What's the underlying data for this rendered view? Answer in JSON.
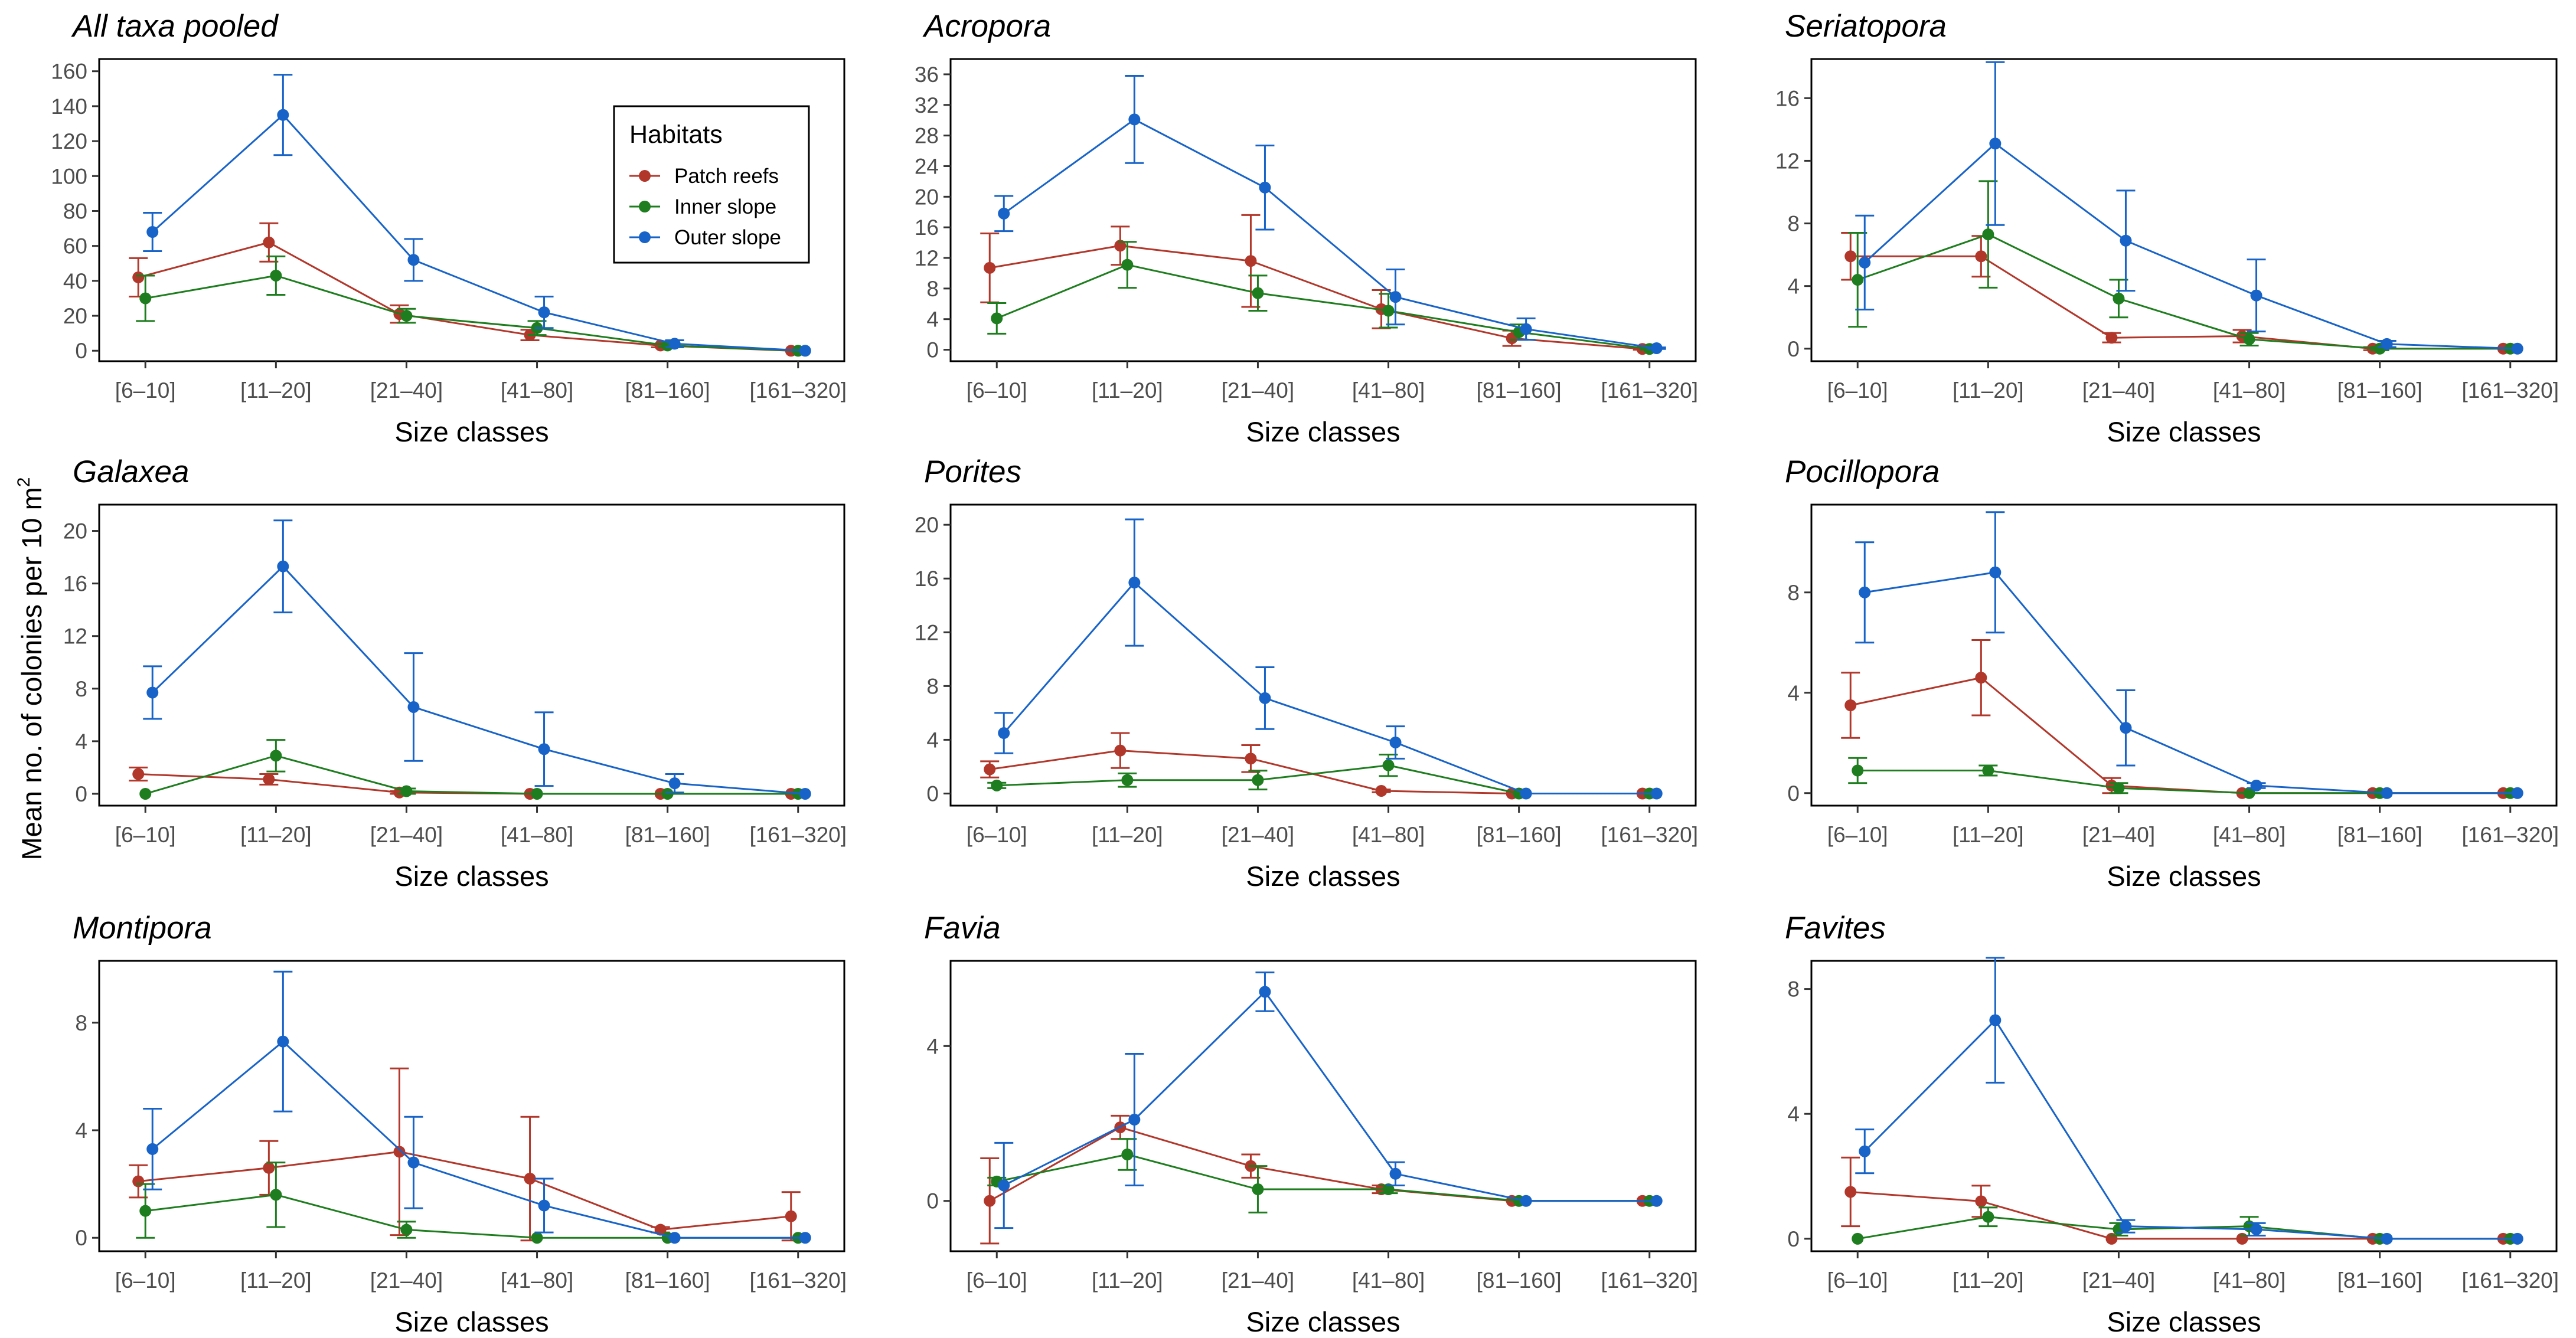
{
  "ylabel": "Mean no. of colonies per 10 m",
  "ylabel_sup": "2",
  "xlabel": "Size classes",
  "legend": {
    "title": "Habitats",
    "labels": [
      "Patch reefs",
      "Inner slope",
      "Outer slope"
    ]
  },
  "colors": {
    "patch_reefs": "#b2372b",
    "inner_slope": "#1e7d1e",
    "outer_slope": "#1763c8"
  },
  "chart_data": [
    {
      "type": "line",
      "title": "All taxa pooled",
      "categories": [
        "[6–10]",
        "[11–20]",
        "[21–40]",
        "[41–80]",
        "[81–160]",
        "[161–320]"
      ],
      "xlabel": "Size classes",
      "ylim": [
        -6,
        167
      ],
      "yticks": [
        0,
        20,
        40,
        60,
        80,
        100,
        120,
        140,
        160
      ],
      "series": [
        {
          "name": "Patch reefs",
          "values": [
            42,
            62,
            21,
            9,
            3,
            0
          ],
          "err": [
            11,
            11,
            5,
            3,
            1,
            0
          ]
        },
        {
          "name": "Inner slope",
          "values": [
            30,
            43,
            20,
            13,
            3,
            0
          ],
          "err": [
            13,
            11,
            4,
            4,
            1,
            0
          ]
        },
        {
          "name": "Outer slope",
          "values": [
            68,
            135,
            52,
            22,
            4,
            0
          ],
          "err": [
            11,
            23,
            12,
            9,
            2,
            0
          ]
        }
      ]
    },
    {
      "type": "line",
      "title": "Acropora",
      "categories": [
        "[6–10]",
        "[11–20]",
        "[21–40]",
        "[41–80]",
        "[81–160]",
        "[161–320]"
      ],
      "xlabel": "Size classes",
      "ylim": [
        -1.5,
        38
      ],
      "yticks": [
        0,
        4,
        8,
        12,
        16,
        20,
        24,
        28,
        32,
        36
      ],
      "series": [
        {
          "name": "Patch reefs",
          "values": [
            10.7,
            13.6,
            11.6,
            5.3,
            1.5,
            0.1
          ],
          "err": [
            4.5,
            2.5,
            6.0,
            2.5,
            1.0,
            0.1
          ]
        },
        {
          "name": "Inner slope",
          "values": [
            4.1,
            11.1,
            7.4,
            5.1,
            2.3,
            0.1
          ],
          "err": [
            2.0,
            3.0,
            2.3,
            2.2,
            1.0,
            0.1
          ]
        },
        {
          "name": "Outer slope",
          "values": [
            17.8,
            30.1,
            21.2,
            6.9,
            2.7,
            0.2
          ],
          "err": [
            2.3,
            5.7,
            5.5,
            3.6,
            1.4,
            0.1
          ]
        }
      ]
    },
    {
      "type": "line",
      "title": "Seriatopora",
      "categories": [
        "[6–10]",
        "[11–20]",
        "[21–40]",
        "[41–80]",
        "[81–160]",
        "[161–320]"
      ],
      "xlabel": "Size classes",
      "ylim": [
        -0.8,
        18.5
      ],
      "yticks": [
        0,
        4,
        8,
        12,
        16
      ],
      "series": [
        {
          "name": "Patch reefs",
          "values": [
            5.9,
            5.9,
            0.7,
            0.8,
            0.0,
            0.0
          ],
          "err": [
            1.5,
            1.3,
            0.3,
            0.4,
            0.1,
            0.0
          ]
        },
        {
          "name": "Inner slope",
          "values": [
            4.4,
            7.3,
            3.2,
            0.6,
            0.0,
            0.0
          ],
          "err": [
            3.0,
            3.4,
            1.2,
            0.4,
            0.1,
            0.0
          ]
        },
        {
          "name": "Outer slope",
          "values": [
            5.5,
            13.1,
            6.9,
            3.4,
            0.3,
            0.0
          ],
          "err": [
            3.0,
            5.2,
            3.2,
            2.3,
            0.2,
            0.0
          ]
        }
      ]
    },
    {
      "type": "line",
      "title": "Galaxea",
      "categories": [
        "[6–10]",
        "[11–20]",
        "[21–40]",
        "[41–80]",
        "[81–160]",
        "[161–320]"
      ],
      "xlabel": "Size classes",
      "ylim": [
        -0.9,
        22
      ],
      "yticks": [
        0,
        4,
        8,
        12,
        16,
        20
      ],
      "series": [
        {
          "name": "Patch reefs",
          "values": [
            1.5,
            1.1,
            0.1,
            0.0,
            0.0,
            0.0
          ],
          "err": [
            0.5,
            0.4,
            0.1,
            0.0,
            0.0,
            0.0
          ]
        },
        {
          "name": "Inner slope",
          "values": [
            0.0,
            2.9,
            0.2,
            0.0,
            0.0,
            0.0
          ],
          "err": [
            0.0,
            1.2,
            0.2,
            0.0,
            0.0,
            0.0
          ]
        },
        {
          "name": "Outer slope",
          "values": [
            7.7,
            17.3,
            6.6,
            3.4,
            0.8,
            0.0
          ],
          "err": [
            2.0,
            3.5,
            4.1,
            2.8,
            0.7,
            0.0
          ]
        }
      ]
    },
    {
      "type": "line",
      "title": "Porites",
      "categories": [
        "[6–10]",
        "[11–20]",
        "[21–40]",
        "[41–80]",
        "[81–160]",
        "[161–320]"
      ],
      "xlabel": "Size classes",
      "ylim": [
        -0.9,
        21.5
      ],
      "yticks": [
        0,
        4,
        8,
        12,
        16,
        20
      ],
      "series": [
        {
          "name": "Patch reefs",
          "values": [
            1.8,
            3.2,
            2.6,
            0.2,
            0.0,
            0.0
          ],
          "err": [
            0.6,
            1.3,
            1.0,
            0.1,
            0.0,
            0.0
          ]
        },
        {
          "name": "Inner slope",
          "values": [
            0.6,
            1.0,
            1.0,
            2.1,
            0.0,
            0.0
          ],
          "err": [
            0.2,
            0.5,
            0.7,
            0.8,
            0.0,
            0.0
          ]
        },
        {
          "name": "Outer slope",
          "values": [
            4.5,
            15.7,
            7.1,
            3.8,
            0.0,
            0.0
          ],
          "err": [
            1.5,
            4.7,
            2.3,
            1.2,
            0.0,
            0.0
          ]
        }
      ]
    },
    {
      "type": "line",
      "title": "Pocillopora",
      "categories": [
        "[6–10]",
        "[11–20]",
        "[21–40]",
        "[41–80]",
        "[81–160]",
        "[161–320]"
      ],
      "xlabel": "Size classes",
      "ylim": [
        -0.5,
        11.5
      ],
      "yticks": [
        0,
        4,
        8
      ],
      "series": [
        {
          "name": "Patch reefs",
          "values": [
            3.5,
            4.6,
            0.3,
            0.0,
            0.0,
            0.0
          ],
          "err": [
            1.3,
            1.5,
            0.3,
            0.0,
            0.0,
            0.0
          ]
        },
        {
          "name": "Inner slope",
          "values": [
            0.9,
            0.9,
            0.2,
            0.0,
            0.0,
            0.0
          ],
          "err": [
            0.5,
            0.2,
            0.2,
            0.0,
            0.0,
            0.0
          ]
        },
        {
          "name": "Outer slope",
          "values": [
            8.0,
            8.8,
            2.6,
            0.3,
            0.0,
            0.0
          ],
          "err": [
            2.0,
            2.4,
            1.5,
            0.1,
            0.0,
            0.0
          ]
        }
      ]
    },
    {
      "type": "line",
      "title": "Montipora",
      "categories": [
        "[6–10]",
        "[11–20]",
        "[21–40]",
        "[41–80]",
        "[81–160]",
        "[161–320]"
      ],
      "xlabel": "Size classes",
      "ylim": [
        -0.5,
        10.3
      ],
      "yticks": [
        0,
        4,
        8
      ],
      "series": [
        {
          "name": "Patch reefs",
          "values": [
            2.1,
            2.6,
            3.2,
            2.2,
            0.3,
            0.8
          ],
          "err": [
            0.6,
            1.0,
            3.1,
            2.3,
            0.1,
            0.9
          ]
        },
        {
          "name": "Inner slope",
          "values": [
            1.0,
            1.6,
            0.3,
            0.0,
            0.0,
            0.0
          ],
          "err": [
            1.0,
            1.2,
            0.3,
            0.0,
            0.0,
            0.0
          ]
        },
        {
          "name": "Outer slope",
          "values": [
            3.3,
            7.3,
            2.8,
            1.2,
            0.0,
            0.0
          ],
          "err": [
            1.5,
            2.6,
            1.7,
            1.0,
            0.0,
            0.0
          ]
        }
      ]
    },
    {
      "type": "line",
      "title": "Favia",
      "categories": [
        "[6–10]",
        "[11–20]",
        "[21–40]",
        "[41–80]",
        "[81–160]",
        "[161–320]"
      ],
      "xlabel": "Size classes",
      "ylim": [
        -1.3,
        6.2
      ],
      "yticks": [
        0,
        4
      ],
      "series": [
        {
          "name": "Patch reefs",
          "values": [
            0.0,
            1.9,
            0.9,
            0.3,
            0.0,
            0.0
          ],
          "err": [
            1.1,
            0.3,
            0.3,
            0.1,
            0.0,
            0.0
          ]
        },
        {
          "name": "Inner slope",
          "values": [
            0.5,
            1.2,
            0.3,
            0.3,
            0.0,
            0.0
          ],
          "err": [
            0.1,
            0.4,
            0.6,
            0.1,
            0.0,
            0.0
          ]
        },
        {
          "name": "Outer slope",
          "values": [
            0.4,
            2.1,
            5.4,
            0.7,
            0.0,
            0.0
          ],
          "err": [
            1.1,
            1.7,
            0.5,
            0.3,
            0.0,
            0.0
          ]
        }
      ]
    },
    {
      "type": "line",
      "title": "Favites",
      "categories": [
        "[6–10]",
        "[11–20]",
        "[21–40]",
        "[41–80]",
        "[81–160]",
        "[161–320]"
      ],
      "xlabel": "Size classes",
      "ylim": [
        -0.4,
        8.9
      ],
      "yticks": [
        0,
        4,
        8
      ],
      "series": [
        {
          "name": "Patch reefs",
          "values": [
            1.5,
            1.2,
            0.0,
            0.0,
            0.0,
            0.0
          ],
          "err": [
            1.1,
            0.5,
            0.0,
            0.0,
            0.0,
            0.0
          ]
        },
        {
          "name": "Inner slope",
          "values": [
            0.0,
            0.7,
            0.3,
            0.4,
            0.0,
            0.0
          ],
          "err": [
            0.0,
            0.3,
            0.2,
            0.3,
            0.0,
            0.0
          ]
        },
        {
          "name": "Outer slope",
          "values": [
            2.8,
            7.0,
            0.4,
            0.3,
            0.0,
            0.0
          ],
          "err": [
            0.7,
            2.0,
            0.2,
            0.2,
            0.0,
            0.0
          ]
        }
      ]
    }
  ]
}
